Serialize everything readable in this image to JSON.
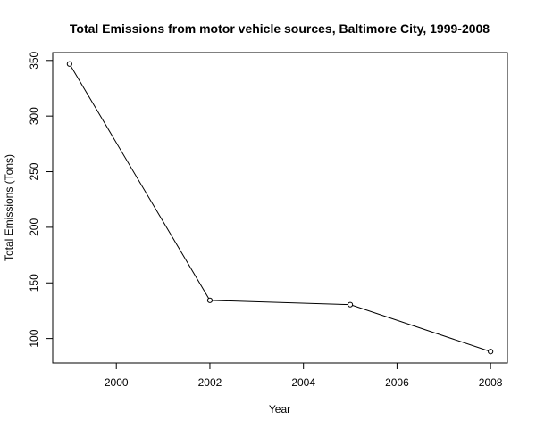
{
  "chart_data": {
    "type": "line",
    "title": "Total Emissions from motor vehicle sources, Baltimore City, 1999-2008",
    "xlabel": "Year",
    "ylabel": "Total Emissions (Tons)",
    "x": [
      1999,
      2002,
      2005,
      2008
    ],
    "series": [
      {
        "values": [
          346.82,
          134.31,
          130.43,
          88.28
        ]
      }
    ],
    "xticks": [
      2000,
      2002,
      2004,
      2006,
      2008
    ],
    "yticks": [
      100,
      150,
      200,
      250,
      300,
      350
    ],
    "xlim": [
      1998.64,
      2008.36
    ],
    "ylim": [
      78.05,
      357.05
    ],
    "marker": "open-circle",
    "line_color": "#000000",
    "grid": false,
    "legend": "none"
  }
}
